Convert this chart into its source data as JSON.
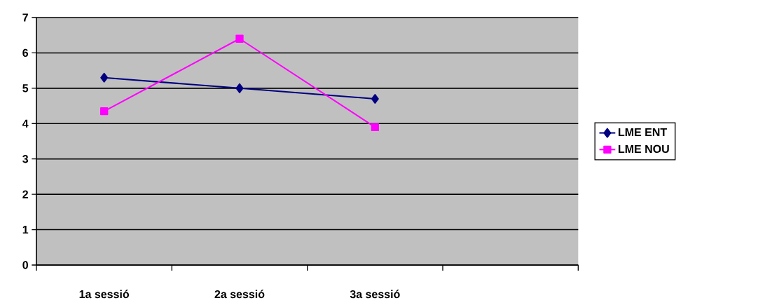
{
  "chart_data": {
    "type": "line",
    "categories": [
      "1a sessió",
      "2a sessió",
      "3a sessió",
      null
    ],
    "series": [
      {
        "name": "LME ENT",
        "color": "#000080",
        "marker": "diamond",
        "values": [
          5.3,
          5.0,
          4.7,
          null
        ]
      },
      {
        "name": "LME NOU",
        "color": "#ff00ff",
        "marker": "square",
        "values": [
          4.35,
          6.4,
          3.9,
          null
        ]
      }
    ],
    "ylim": [
      0,
      7
    ],
    "yticks": [
      0,
      1,
      2,
      3,
      4,
      5,
      6,
      7
    ],
    "grid": "y",
    "legend": "right"
  }
}
